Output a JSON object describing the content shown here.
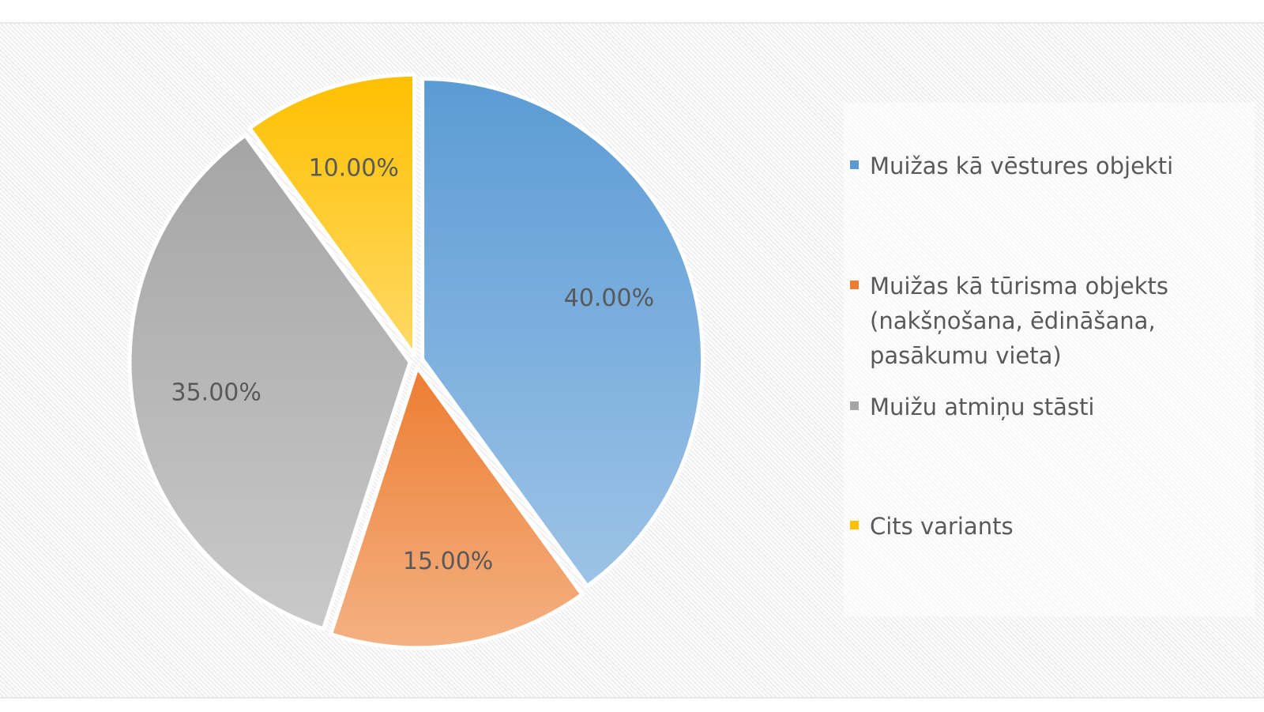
{
  "chart_data": {
    "type": "pie",
    "categories": [
      "Muižas kā vēstures objekti",
      "Muižas kā tūrisma objekts (nakšņošana, ēdināšana, pasākumu vieta)",
      "Muižu atmiņu stāsti",
      "Cits variants"
    ],
    "values": [
      40,
      15,
      35,
      10
    ],
    "data_labels": [
      "40.00%",
      "15.00%",
      "35.00%",
      "10.00%"
    ],
    "colors": [
      "#5b9bd5",
      "#ed7d31",
      "#a5a5a5",
      "#ffc000"
    ],
    "legend_position": "right",
    "title": ""
  },
  "legend": {
    "items": [
      {
        "label": "Muižas kā vēstures objekti",
        "color": "#5b9bd5"
      },
      {
        "label": "Muižas kā tūrisma objekts (nakšņošana, ēdināšana, pasākumu vieta)",
        "color": "#ed7d31"
      },
      {
        "label": "Muižu atmiņu stāsti",
        "color": "#a5a5a5"
      },
      {
        "label": "Cits variants",
        "color": "#ffc000"
      }
    ]
  }
}
